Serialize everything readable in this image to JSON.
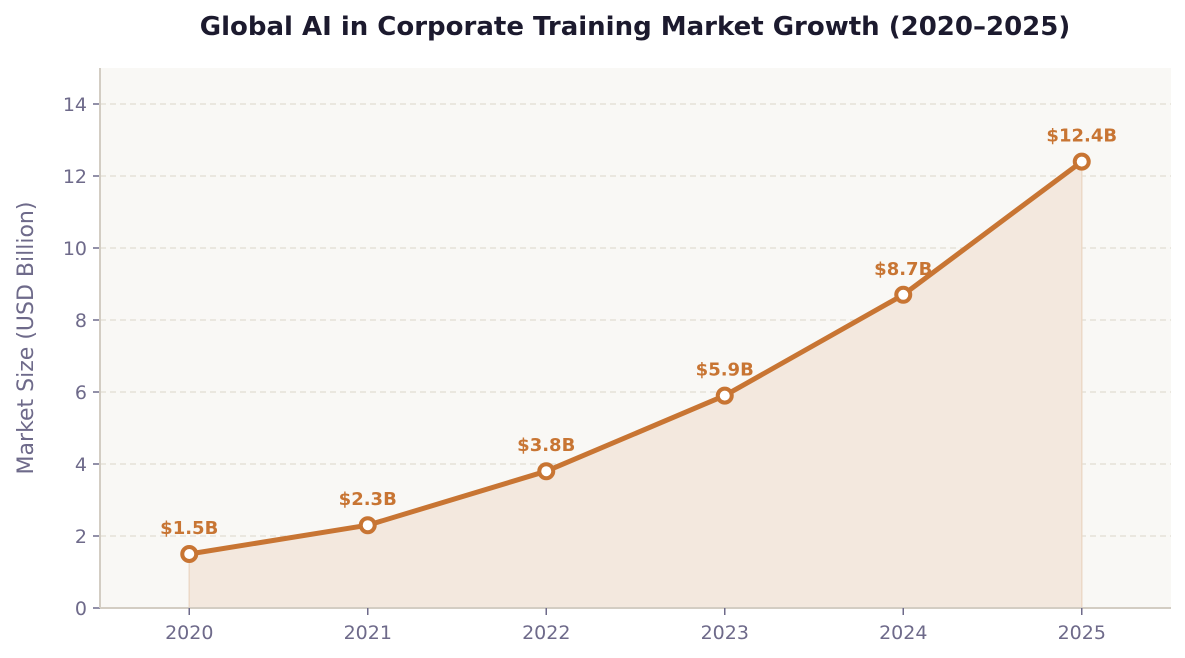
{
  "chart_data": {
    "type": "area",
    "title": "Global AI in Corporate Training Market Growth (2020–2025)",
    "xlabel": "",
    "ylabel": "Market Size (USD Billion)",
    "x": [
      2020,
      2021,
      2022,
      2023,
      2024,
      2025
    ],
    "x_tick_labels": [
      "2020",
      "2021",
      "2022",
      "2023",
      "2024",
      "2025"
    ],
    "values": [
      1.5,
      2.3,
      3.8,
      5.9,
      8.7,
      12.4
    ],
    "data_labels": [
      "$1.5B",
      "$2.3B",
      "$3.8B",
      "$5.9B",
      "$8.7B",
      "$12.4B"
    ],
    "y_ticks": [
      0,
      2,
      4,
      6,
      8,
      10,
      12,
      14
    ],
    "xlim": [
      2019.5,
      2025.5
    ],
    "ylim": [
      0,
      15
    ],
    "grid": "horizontal dashed",
    "colors": {
      "line": "#c87533",
      "fill": "#f3e8de",
      "plot_bg": "#f9f8f5",
      "grid": "#e6e1d8",
      "axis": "#d3cdc3"
    }
  }
}
